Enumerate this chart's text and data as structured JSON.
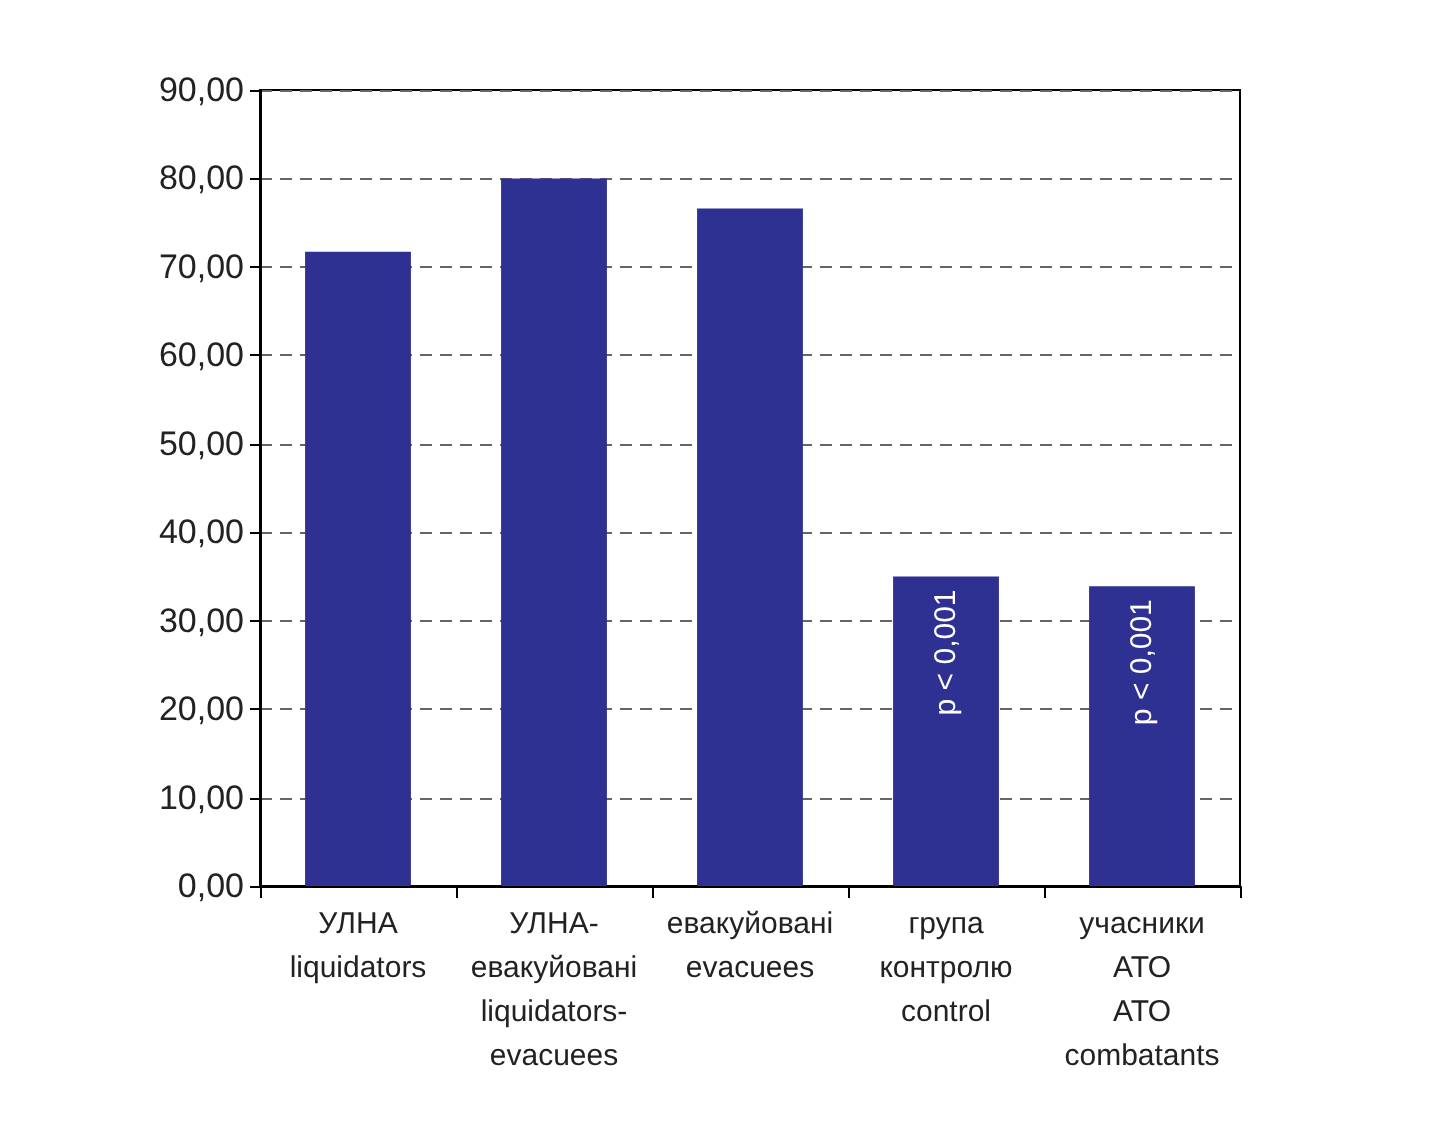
{
  "chart_data": {
    "type": "bar",
    "categories": [
      "УЛНА\nliquidators",
      "УЛНА-\nевакуйовані\nliquidators-\nevacuees",
      "евакуйовані\nevacuees",
      "група\nконтролю\ncontrol",
      "учасники\nАТО\nАТО\ncombatants"
    ],
    "values": [
      71.7,
      80.0,
      76.6,
      35.0,
      33.9
    ],
    "color": "#2e3192",
    "ylim": [
      0,
      90
    ],
    "yticks": [
      {
        "value": 0,
        "label": "0,00"
      },
      {
        "value": 10,
        "label": "10,00"
      },
      {
        "value": 20,
        "label": "20,00"
      },
      {
        "value": 30,
        "label": "30,00"
      },
      {
        "value": 40,
        "label": "40,00"
      },
      {
        "value": 50,
        "label": "50,00"
      },
      {
        "value": 60,
        "label": "60,00"
      },
      {
        "value": 70,
        "label": "70,00"
      },
      {
        "value": 80,
        "label": "80,00"
      },
      {
        "value": 90,
        "label": "90,00"
      }
    ],
    "grid": "y",
    "annotations": [
      {
        "text": "p < 0,001",
        "x": "група\nконтролю\ncontrol",
        "y": 35.0
      },
      {
        "text": "p < 0,001",
        "x": "учасники\nАТО\nАТО\ncombatants",
        "y": 33.9
      }
    ]
  }
}
